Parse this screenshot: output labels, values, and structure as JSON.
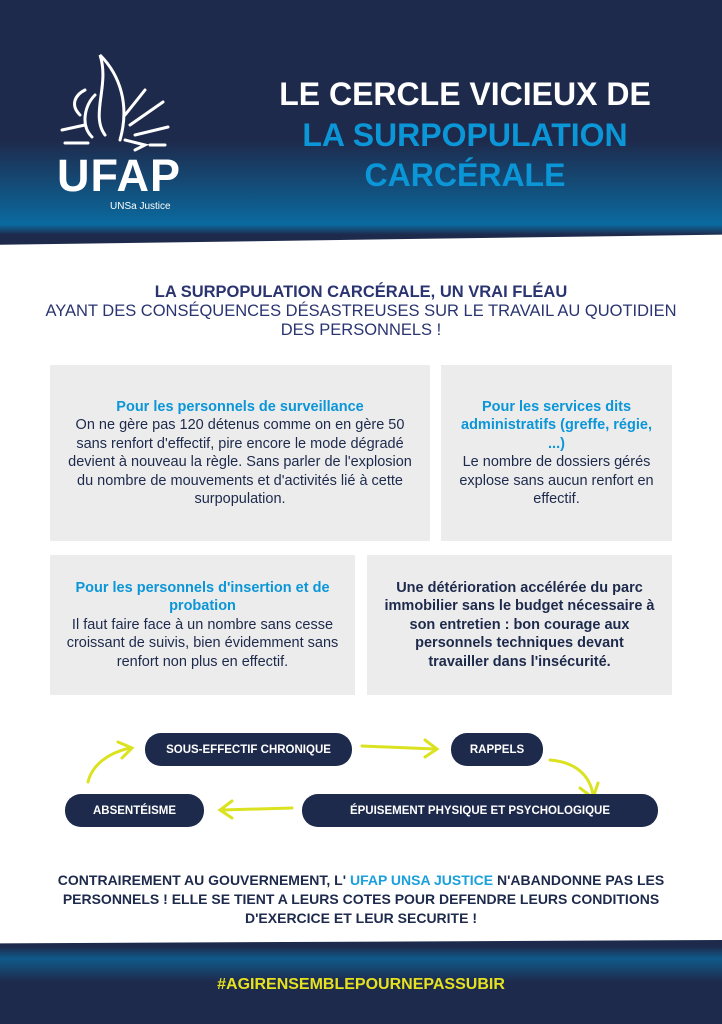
{
  "logo": {
    "name": "UFAP",
    "sub": "UNSa Justice"
  },
  "title": {
    "line1": "LE CERCLE VICIEUX DE",
    "line2": "LA SURPOPULATION",
    "line3": "CARCÉRALE"
  },
  "headline": {
    "bold": "LA SURPOPULATION CARCÉRALE, UN VRAI FLÉAU",
    "rest": "AYANT DES CONSÉQUENCES DÉSASTREUSES SUR LE TRAVAIL AU QUOTIDIEN DES PERSONNELS !"
  },
  "boxes": [
    {
      "heading": "Pour les personnels de surveillance",
      "text": "On ne gère pas 120 détenus comme on en gère 50 sans renfort d'effectif, pire encore le mode dégradé devient à nouveau la règle. Sans parler de l'explosion du nombre de mouvements et d'activités lié à cette surpopulation."
    },
    {
      "heading": "Pour les services dits administratifs (greffe, régie, ...)",
      "text": "Le nombre de dossiers gérés explose sans aucun renfort en effectif."
    },
    {
      "heading": "Pour les personnels d'insertion et de probation",
      "text": "Il faut faire face à un nombre sans cesse croissant de suivis, bien évidemment sans renfort non plus en effectif."
    },
    {
      "text": "Une détérioration accélérée du parc immobilier sans le budget nécessaire à son entretien : bon courage aux personnels techniques devant travailler dans l'insécurité."
    }
  ],
  "cycle": [
    "SOUS-EFFECTIF CHRONIQUE",
    "RAPPELS",
    "ÉPUISEMENT PHYSIQUE ET PSYCHOLOGIQUE",
    "ABSENTÉISME"
  ],
  "closing": {
    "before": "CONTRAIREMENT AU GOUVERNEMENT,  L' ",
    "highlight": "UFAP UNSA JUSTICE",
    "after": " N'ABANDONNE PAS LES PERSONNELS ! ELLE SE TIENT A LEURS COTES POUR DEFENDRE LEURS CONDITIONS D'EXERCICE  ET LEUR SECURITE !"
  },
  "hashtag": "#AGIRENSEMBLEPOURNEPASSUBIR",
  "colors": {
    "navy": "#1e2a4c",
    "blue": "#0b96d8",
    "yellow": "#e5e21f",
    "box": "#ececec"
  }
}
